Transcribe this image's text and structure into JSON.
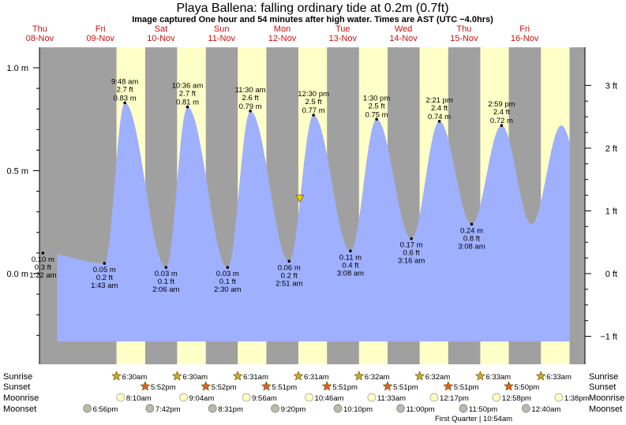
{
  "title": "Playa Ballena: falling  ordinary tide at 0.2m (0.7ft)",
  "subtitle": "Image captured One hour and 54 minutes after high water. Times are AST (UTC −4.0hrs)",
  "colors": {
    "night": "#a0a0a0",
    "day": "#ffffc8",
    "water": "#9fb0ff",
    "day_label": "#d01010",
    "now_marker": "#f0d000"
  },
  "days": [
    {
      "name": "Thu",
      "date": "08-Nov"
    },
    {
      "name": "Fri",
      "date": "09-Nov"
    },
    {
      "name": "Sat",
      "date": "10-Nov"
    },
    {
      "name": "Sun",
      "date": "11-Nov"
    },
    {
      "name": "Mon",
      "date": "12-Nov"
    },
    {
      "name": "Tue",
      "date": "13-Nov"
    },
    {
      "name": "Wed",
      "date": "14-Nov"
    },
    {
      "name": "Thu",
      "date": "15-Nov"
    },
    {
      "name": "Fri",
      "date": "16-Nov"
    }
  ],
  "chart_data": {
    "type": "area",
    "y_units_left": "m",
    "y_units_right": "ft",
    "ylim_m": [
      -0.33,
      1.0
    ],
    "left_ticks": [
      "1.0 m",
      "0.5 m",
      "0.0 m"
    ],
    "left_tick_values_m": [
      1.0,
      0.5,
      0.0
    ],
    "right_ticks": [
      "3 ft",
      "2 ft",
      "1 ft",
      "0 ft",
      "−1 ft"
    ],
    "right_tick_values_ft": [
      3,
      2,
      1,
      0,
      -1
    ],
    "x_start": "08-Nov 00:00",
    "x_end": "17-Nov 00:00",
    "extremes": [
      {
        "type": "low",
        "time": "1:22 am",
        "t": "08-Nov 01:22",
        "m": "0.10 m",
        "ft": "0.3 ft",
        "value_m": 0.1
      },
      {
        "type": "high",
        "time": "9:48 am",
        "t": "09-Nov 09:48",
        "m": "0.83 m",
        "ft": "2.7 ft",
        "value_m": 0.83
      },
      {
        "type": "low",
        "time": "1:43 am",
        "t": "09-Nov 01:43",
        "m": "0.05 m",
        "ft": "0.2 ft",
        "value_m": 0.05
      },
      {
        "type": "high",
        "time": "10:36 am",
        "t": "10-Nov 10:36",
        "m": "0.81 m",
        "ft": "2.7 ft",
        "value_m": 0.81
      },
      {
        "type": "low",
        "time": "2:06 am",
        "t": "10-Nov 02:06",
        "m": "0.03 m",
        "ft": "0.1 ft",
        "value_m": 0.03
      },
      {
        "type": "high",
        "time": "11:30 am",
        "t": "11-Nov 11:30",
        "m": "0.79 m",
        "ft": "2.6 ft",
        "value_m": 0.79
      },
      {
        "type": "low",
        "time": "2:30 am",
        "t": "11-Nov 02:30",
        "m": "0.03 m",
        "ft": "0.1 ft",
        "value_m": 0.03
      },
      {
        "type": "high",
        "time": "12:30 pm",
        "t": "12-Nov 12:30",
        "m": "0.77 m",
        "ft": "2.5 ft",
        "value_m": 0.77
      },
      {
        "type": "low",
        "time": "2:51 am",
        "t": "12-Nov 02:51",
        "m": "0.06 m",
        "ft": "0.2 ft",
        "value_m": 0.06
      },
      {
        "type": "high",
        "time": "1:30 pm",
        "t": "13-Nov 13:30",
        "m": "0.75 m",
        "ft": "2.5 ft",
        "value_m": 0.75
      },
      {
        "type": "low",
        "time": "3:08 am",
        "t": "13-Nov 03:08",
        "m": "0.11 m",
        "ft": "0.4 ft",
        "value_m": 0.11
      },
      {
        "type": "high",
        "time": "2:21 pm",
        "t": "14-Nov 14:21",
        "m": "0.74 m",
        "ft": "2.4 ft",
        "value_m": 0.74
      },
      {
        "type": "low",
        "time": "3:16 am",
        "t": "14-Nov 03:16",
        "m": "0.17 m",
        "ft": "0.6 ft",
        "value_m": 0.17
      },
      {
        "type": "high",
        "time": "2:59 pm",
        "t": "15-Nov 14:59",
        "m": "0.72 m",
        "ft": "2.4 ft",
        "value_m": 0.72
      },
      {
        "type": "low",
        "time": "3:08 am",
        "t": "15-Nov 03:08",
        "m": "0.24 m",
        "ft": "0.8 ft",
        "value_m": 0.24
      }
    ],
    "now": {
      "t": "12-Nov 07:05",
      "value_m": 0.2
    }
  },
  "events": {
    "labels": {
      "sunrise": "Sunrise",
      "sunset": "Sunset",
      "moonrise": "Moonrise",
      "moonset": "Moonset"
    },
    "sunrise": [
      {
        "t": "09-Nov 06:30",
        "time": "6:30am"
      },
      {
        "t": "10-Nov 06:30",
        "time": "6:30am"
      },
      {
        "t": "11-Nov 06:31",
        "time": "6:31am"
      },
      {
        "t": "12-Nov 06:31",
        "time": "6:31am"
      },
      {
        "t": "13-Nov 06:32",
        "time": "6:32am"
      },
      {
        "t": "14-Nov 06:32",
        "time": "6:32am"
      },
      {
        "t": "15-Nov 06:33",
        "time": "6:33am"
      },
      {
        "t": "16-Nov 06:33",
        "time": "6:33am"
      }
    ],
    "sunset": [
      {
        "t": "09-Nov 17:52",
        "time": "5:52pm"
      },
      {
        "t": "10-Nov 17:52",
        "time": "5:52pm"
      },
      {
        "t": "11-Nov 17:51",
        "time": "5:51pm"
      },
      {
        "t": "12-Nov 17:51",
        "time": "5:51pm"
      },
      {
        "t": "13-Nov 17:51",
        "time": "5:51pm"
      },
      {
        "t": "14-Nov 17:51",
        "time": "5:51pm"
      },
      {
        "t": "15-Nov 17:50",
        "time": "5:50pm"
      }
    ],
    "moonrise": [
      {
        "t": "09-Nov 08:10",
        "time": "8:10am"
      },
      {
        "t": "10-Nov 09:04",
        "time": "9:04am"
      },
      {
        "t": "11-Nov 09:56",
        "time": "9:56am"
      },
      {
        "t": "12-Nov 10:46",
        "time": "10:46am"
      },
      {
        "t": "13-Nov 11:33",
        "time": "11:33am"
      },
      {
        "t": "14-Nov 12:17",
        "time": "12:17pm"
      },
      {
        "t": "15-Nov 12:58",
        "time": "12:58pm"
      },
      {
        "t": "16-Nov 13:38",
        "time": "1:38pm"
      }
    ],
    "moonset": [
      {
        "t": "08-Nov 18:56",
        "time": "6:56pm"
      },
      {
        "t": "09-Nov 19:42",
        "time": "7:42pm"
      },
      {
        "t": "10-Nov 20:31",
        "time": "8:31pm"
      },
      {
        "t": "11-Nov 21:20",
        "time": "9:20pm"
      },
      {
        "t": "12-Nov 22:10",
        "time": "10:10pm"
      },
      {
        "t": "13-Nov 23:00",
        "time": "11:00pm"
      },
      {
        "t": "14-Nov 23:50",
        "time": "11:50pm"
      },
      {
        "t": "16-Nov 00:40",
        "time": "12:40am"
      }
    ],
    "moon_phase": {
      "label": "First Quarter | 10:54am"
    }
  }
}
